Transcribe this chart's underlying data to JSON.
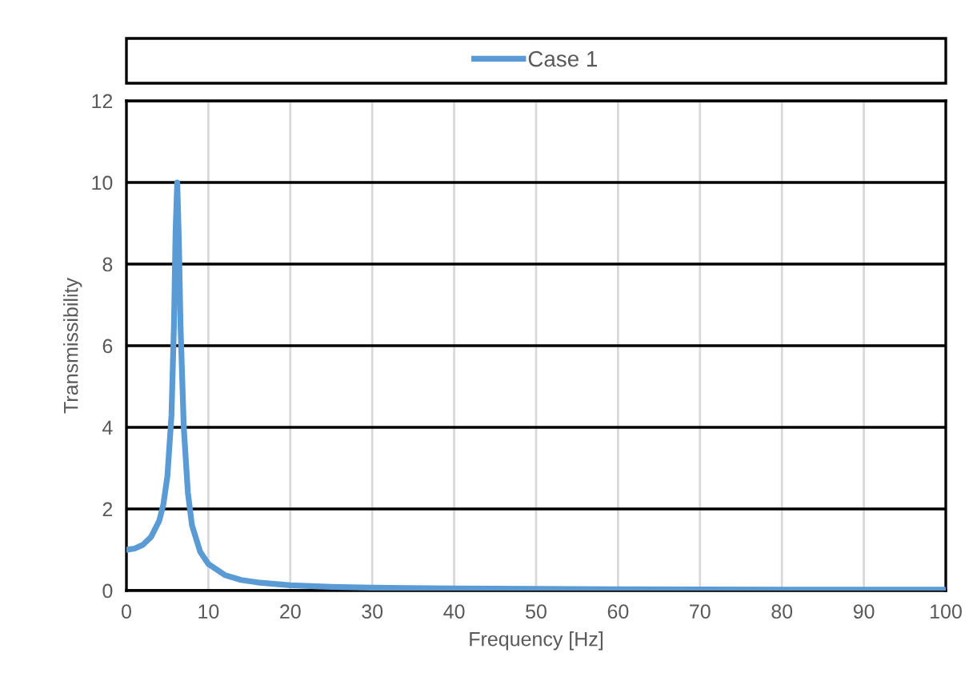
{
  "chart_data": {
    "type": "line",
    "xlabel": "Frequency [Hz]",
    "ylabel": "Transmissibility",
    "x": [
      0,
      1,
      2,
      3,
      4,
      4.5,
      5,
      5.5,
      5.8,
      6.0,
      6.2,
      6.4,
      6.6,
      7,
      7.5,
      8,
      9,
      10,
      12,
      14,
      16,
      20,
      25,
      30,
      40,
      50,
      60,
      80,
      100
    ],
    "series": [
      {
        "name": "Case 1",
        "color": "#5b9bd5",
        "values": [
          1.0,
          1.03,
          1.12,
          1.31,
          1.71,
          2.1,
          2.8,
          4.3,
          6.5,
          8.8,
          10.0,
          8.6,
          6.5,
          4.0,
          2.4,
          1.6,
          0.95,
          0.65,
          0.38,
          0.26,
          0.2,
          0.13,
          0.09,
          0.07,
          0.05,
          0.04,
          0.03,
          0.02,
          0.02
        ]
      }
    ],
    "xlim": [
      0,
      100
    ],
    "xticks": [
      0,
      10,
      20,
      30,
      40,
      50,
      60,
      70,
      80,
      90,
      100
    ],
    "ylim": [
      0,
      12
    ],
    "yticks": [
      0,
      2,
      4,
      6,
      8,
      10,
      12
    ],
    "grid": true,
    "legend": "top",
    "marker": "none",
    "line_style": "solid"
  }
}
